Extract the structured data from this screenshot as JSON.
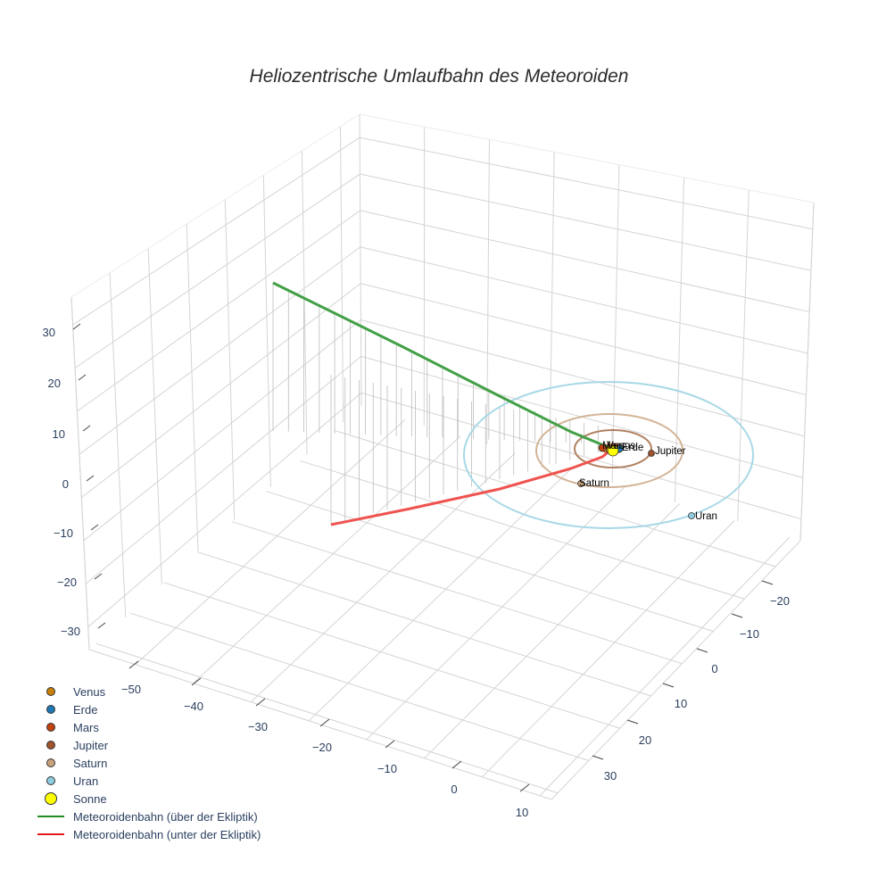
{
  "title": "Heliozentrische Umlaufbahn des Meteoroiden",
  "legend": [
    {
      "label": "Venus",
      "type": "marker",
      "color": "#c8800a"
    },
    {
      "label": "Erde",
      "type": "marker",
      "color": "#1f77b4"
    },
    {
      "label": "Mars",
      "type": "marker",
      "color": "#c1440e"
    },
    {
      "label": "Jupiter",
      "type": "marker",
      "color": "#a0522d"
    },
    {
      "label": "Saturn",
      "type": "marker",
      "color": "#c8a27a"
    },
    {
      "label": "Uran",
      "type": "marker",
      "color": "#8fcde0"
    },
    {
      "label": "Sonne",
      "type": "marker-big",
      "color": "#ffff00"
    },
    {
      "label": "Meteoroidenbahn (über der Ekliptik)",
      "type": "line",
      "color": "#228b22"
    },
    {
      "label": "Meteoroidenbahn (unter der Ekliptik)",
      "type": "line",
      "color": "#e31a1c"
    }
  ],
  "axes": {
    "x_ticks": [
      "−50",
      "−40",
      "−30",
      "−20",
      "−10",
      "0",
      "10"
    ],
    "y_ticks": [
      "−20",
      "−10",
      "0",
      "10",
      "20",
      "30"
    ],
    "z_ticks": [
      "30",
      "20",
      "10",
      "0",
      "−10",
      "−20",
      "−30"
    ]
  },
  "planet_labels": {
    "venus": "Venus",
    "erde": "Erde",
    "mars": "Mars",
    "jupiter": "Jupiter",
    "saturn": "Saturn",
    "uran": "Uran"
  },
  "chart_data": {
    "type": "scatter3d",
    "title": "Heliozentrische Umlaufbahn des Meteoroiden",
    "xlabel": "",
    "ylabel": "",
    "zlabel": "",
    "x_range": [
      -55,
      12
    ],
    "y_range": [
      -25,
      35
    ],
    "z_range": [
      -35,
      35
    ],
    "x_ticks": [
      -50,
      -40,
      -30,
      -20,
      -10,
      0,
      10
    ],
    "y_ticks": [
      -20,
      -10,
      0,
      10,
      20,
      30
    ],
    "z_ticks": [
      -30,
      -20,
      -10,
      0,
      10,
      20,
      30
    ],
    "series": [
      {
        "name": "Venus",
        "kind": "marker",
        "color": "#c8800a",
        "approx_position_au": [
          0,
          -0.7,
          0
        ]
      },
      {
        "name": "Erde",
        "kind": "marker",
        "color": "#1f77b4",
        "approx_position_au": [
          0.3,
          -1.0,
          0
        ]
      },
      {
        "name": "Mars",
        "kind": "marker",
        "color": "#c1440e",
        "approx_position_au": [
          -0.8,
          1.3,
          0
        ]
      },
      {
        "name": "Jupiter",
        "kind": "marker",
        "color": "#a0522d",
        "approx_position_au": [
          2,
          -5,
          0
        ],
        "orbit_radius_au": 5.2
      },
      {
        "name": "Saturn",
        "kind": "marker",
        "color": "#c8a27a",
        "approx_position_au": [
          7,
          6,
          0
        ],
        "orbit_radius_au": 9.5
      },
      {
        "name": "Uran",
        "kind": "marker",
        "color": "#8fcde0",
        "approx_position_au": [
          12,
          -14,
          0
        ],
        "orbit_radius_au": 19.2
      },
      {
        "name": "Sonne",
        "kind": "marker",
        "color": "#ffff00",
        "approx_position_au": [
          0,
          0,
          0
        ]
      },
      {
        "name": "Meteoroidenbahn (über der Ekliptik)",
        "kind": "line",
        "color": "#228b22",
        "approx_endpoints_au": [
          [
            -48,
            5,
            27
          ],
          [
            0,
            0,
            0
          ]
        ]
      },
      {
        "name": "Meteoroidenbahn (unter der Ekliptik)",
        "kind": "line",
        "color": "#e31a1c",
        "approx_endpoints_au": [
          [
            0,
            0,
            0
          ],
          [
            -20,
            25,
            -20
          ]
        ]
      }
    ],
    "grid": true,
    "legend_position": "bottom-left"
  }
}
